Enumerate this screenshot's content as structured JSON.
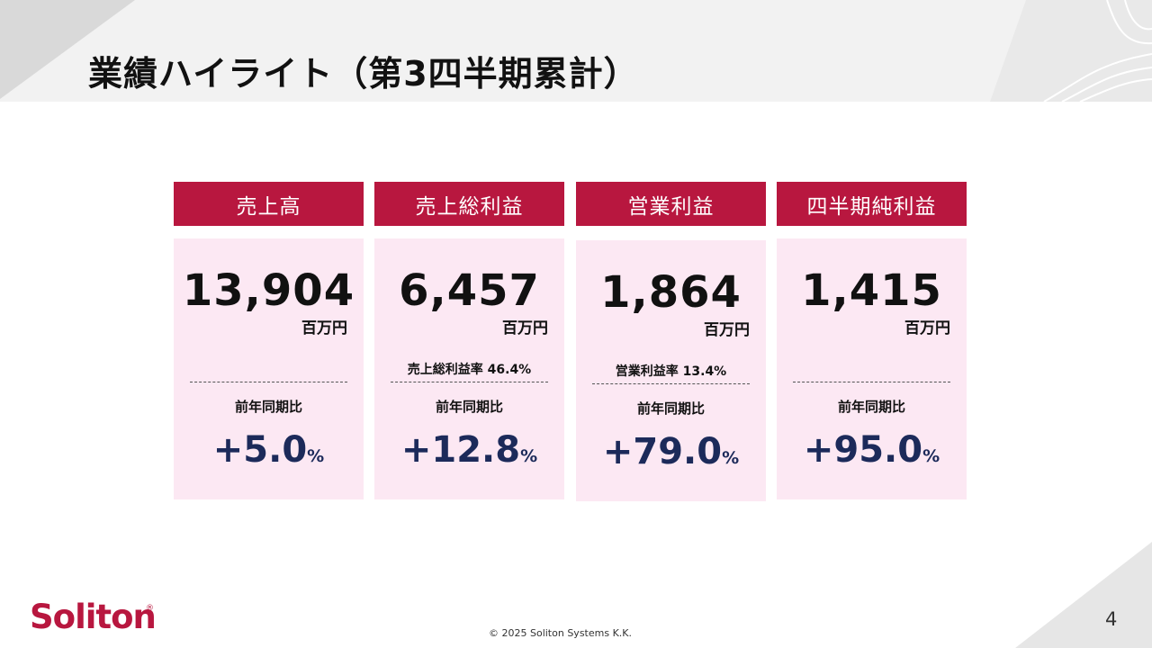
{
  "header": {
    "title": "業績ハイライト（第3四半期累計）"
  },
  "cards": [
    {
      "label": "売上高",
      "value": "13,904",
      "unit": "百万円",
      "sub": "",
      "yoy_label": "前年同期比",
      "yoy_value": "+5.0",
      "yoy_unit": "%"
    },
    {
      "label": "売上総利益",
      "value": "6,457",
      "unit": "百万円",
      "sub": "売上総利益率  46.4%",
      "yoy_label": "前年同期比",
      "yoy_value": "+12.8",
      "yoy_unit": "%"
    },
    {
      "label": "営業利益",
      "value": "1,864",
      "unit": "百万円",
      "sub": "営業利益率  13.4%",
      "yoy_label": "前年同期比",
      "yoy_value": "+79.0",
      "yoy_unit": "%"
    },
    {
      "label": "四半期純利益",
      "value": "1,415",
      "unit": "百万円",
      "sub": "",
      "yoy_label": "前年同期比",
      "yoy_value": "+95.0",
      "yoy_unit": "%"
    }
  ],
  "footer": {
    "logo": "Soliton",
    "logo_mark": "®",
    "copyright": "© 2025 Soliton Systems K.K.",
    "page_number": "4"
  },
  "colors": {
    "accent": "#b8173f",
    "card_bg": "#fce8f3",
    "yoy_text": "#1c2a5a"
  }
}
